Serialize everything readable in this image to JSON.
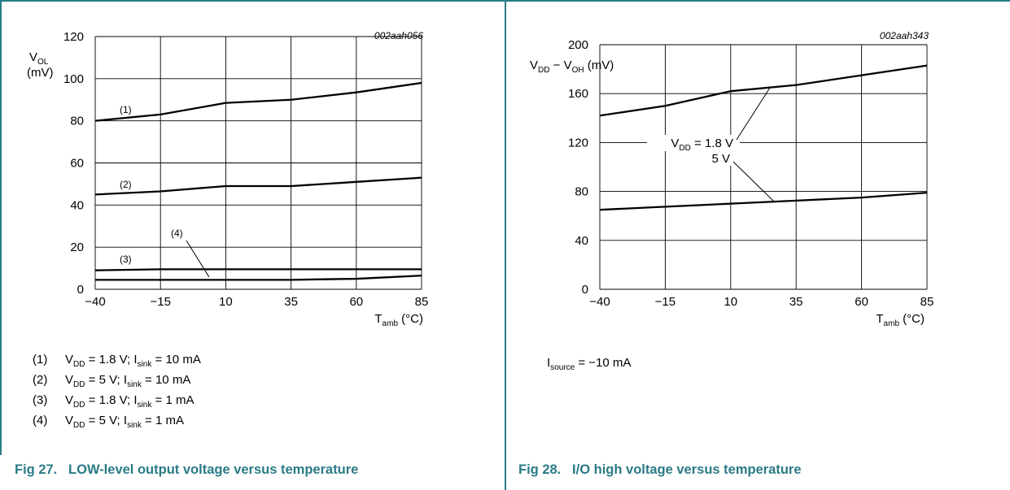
{
  "figures": [
    {
      "caption_number": "Fig 27.",
      "caption_title": "LOW-level output voltage versus temperature",
      "figure_code": "002aah056",
      "legend": [
        {
          "num": "(1)",
          "vdd": "1.8 V",
          "isink": "10 mA"
        },
        {
          "num": "(2)",
          "vdd": "5 V",
          "isink": "10 mA"
        },
        {
          "num": "(3)",
          "vdd": "1.8 V",
          "isink": "1 mA"
        },
        {
          "num": "(4)",
          "vdd": "5 V",
          "isink": "1 mA"
        }
      ]
    },
    {
      "caption_number": "Fig 28.",
      "caption_title": "I/O high voltage versus temperature",
      "figure_code": "002aah343",
      "note": {
        "prefix": "I",
        "sub": "source",
        "text": " = −10 mA"
      }
    }
  ],
  "chart_data": [
    {
      "type": "line",
      "figure_code": "002aah056",
      "ylabel": "V_OL (mV)",
      "xlabel": "T_amb (°C)",
      "x": [
        -40,
        -15,
        10,
        35,
        60,
        85
      ],
      "xlim": [
        -40,
        85
      ],
      "ylim": [
        0,
        120
      ],
      "yticks": [
        0,
        20,
        40,
        60,
        80,
        100,
        120
      ],
      "grid": true,
      "series": [
        {
          "name": "(1)",
          "values": [
            80,
            83,
            88.5,
            90,
            93.5,
            98
          ]
        },
        {
          "name": "(2)",
          "values": [
            45,
            46.5,
            49,
            49,
            51,
            53
          ]
        },
        {
          "name": "(3)",
          "values": [
            9,
            9.5,
            9.5,
            9.5,
            9.5,
            9.5
          ]
        },
        {
          "name": "(4)",
          "values": [
            4.5,
            4.5,
            4.5,
            4.5,
            5,
            6.5
          ]
        }
      ]
    },
    {
      "type": "line",
      "figure_code": "002aah343",
      "ylabel": "V_DD − V_OH (mV)",
      "xlabel": "T_amb (°C)",
      "x": [
        -40,
        -15,
        10,
        35,
        60,
        85
      ],
      "xlim": [
        -40,
        85
      ],
      "ylim": [
        0,
        200
      ],
      "yticks": [
        0,
        40,
        80,
        120,
        160,
        200
      ],
      "grid": true,
      "series": [
        {
          "name": "V_DD = 1.8 V",
          "values": [
            142,
            150,
            162,
            167,
            175,
            183
          ]
        },
        {
          "name": "5 V",
          "values": [
            65,
            67.5,
            70,
            72.5,
            75,
            79
          ]
        }
      ]
    }
  ]
}
